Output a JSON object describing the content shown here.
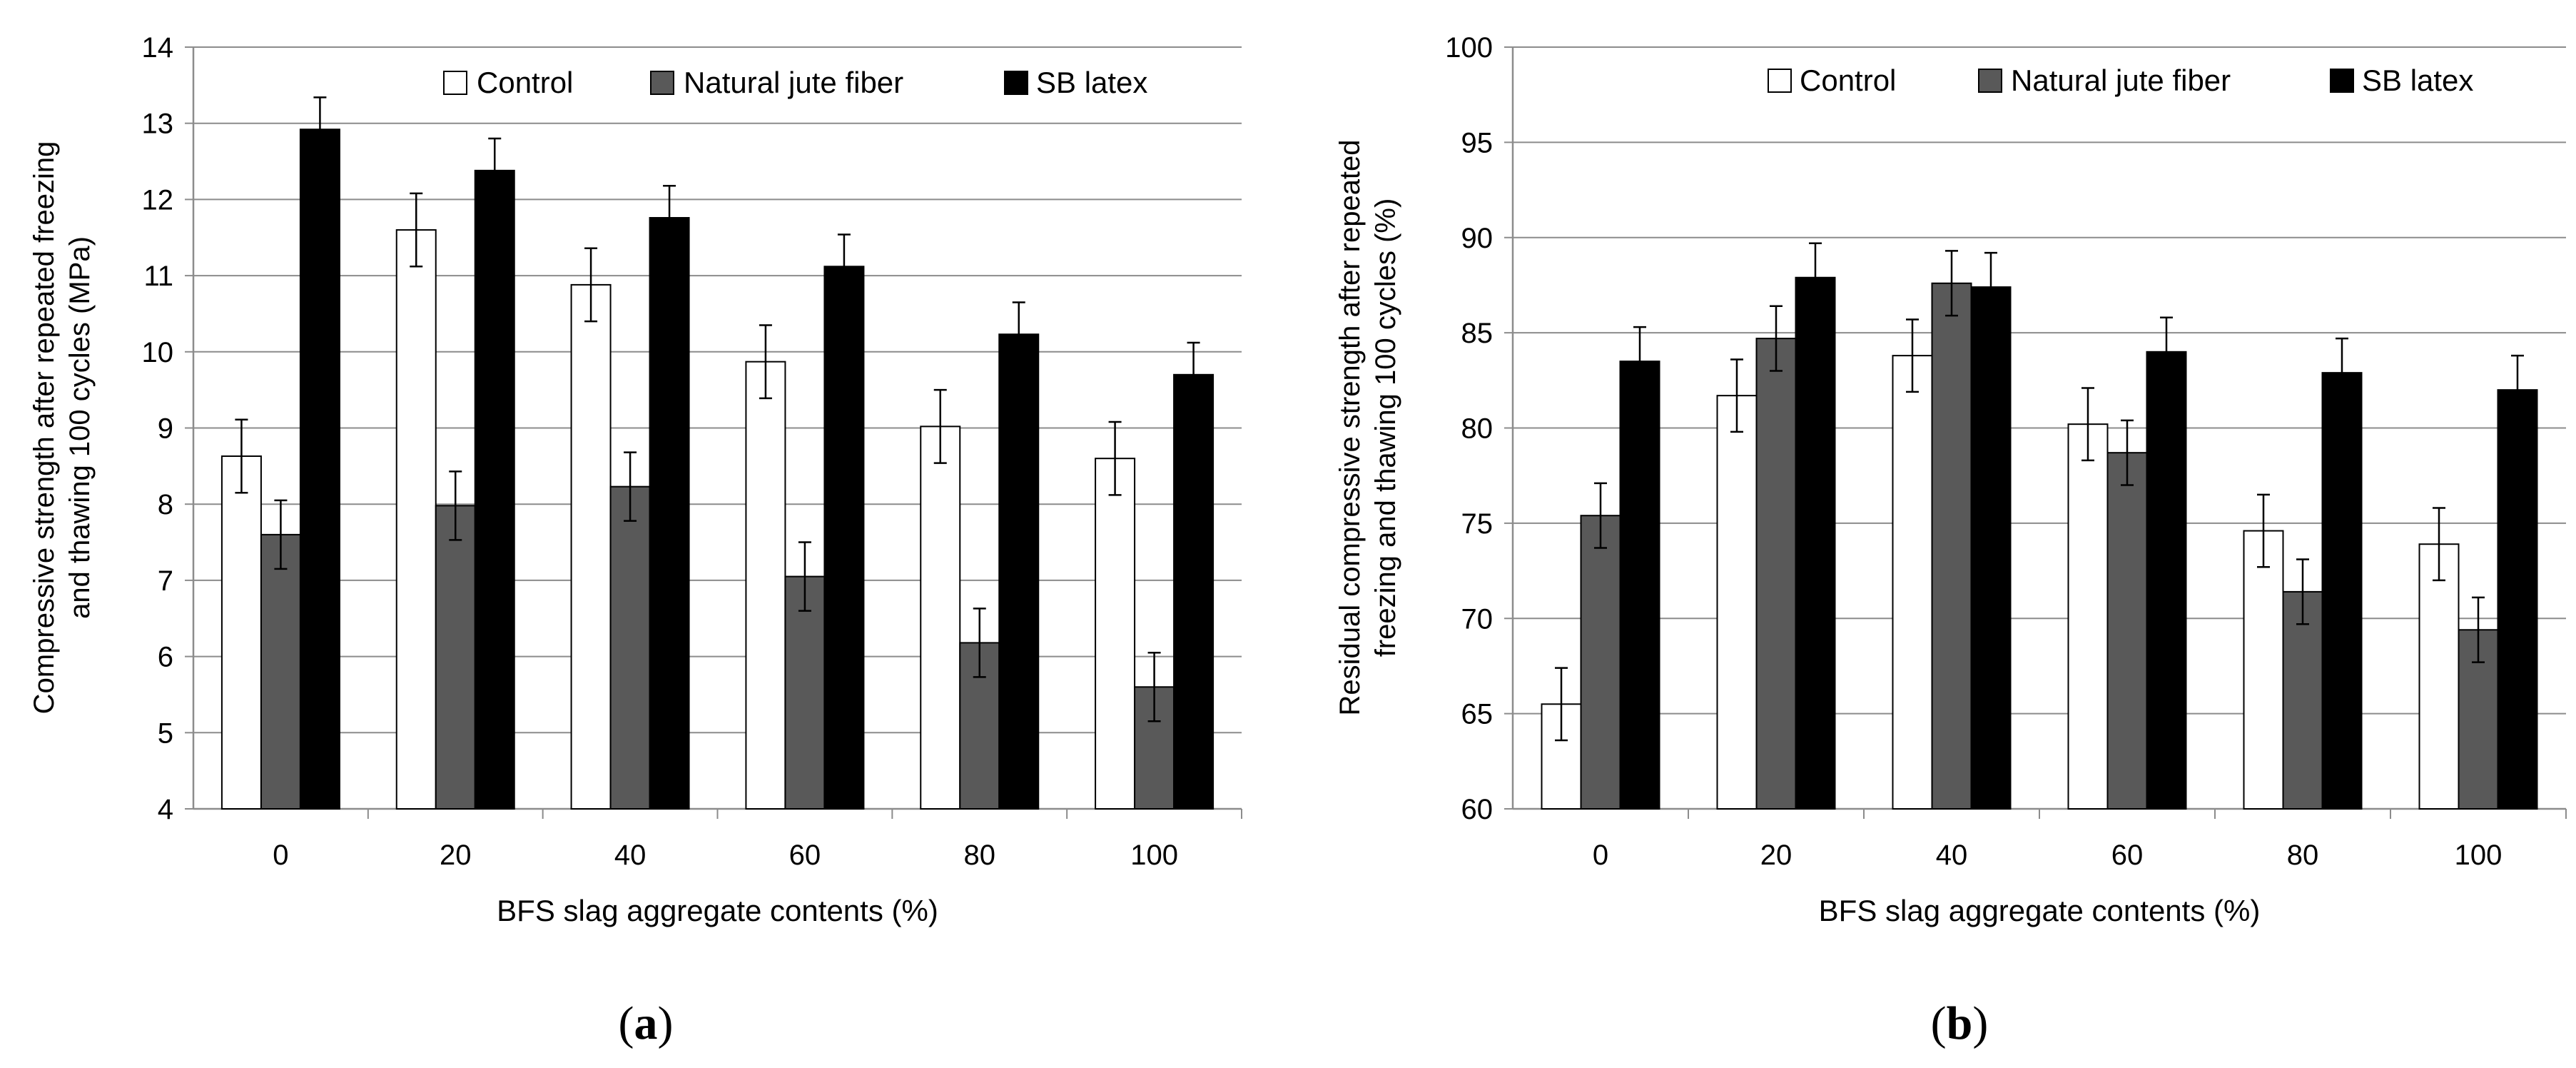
{
  "chart_data": [
    {
      "panel": "(a)",
      "panel_letter": "a",
      "type": "bar",
      "title": "",
      "xlabel": "BFS slag aggregate contents (%)",
      "ylabel_lines": [
        "Compressive strength after repeated freezing",
        "and thawing 100 cycles (MPa)"
      ],
      "categories": [
        "0",
        "20",
        "40",
        "60",
        "80",
        "100"
      ],
      "ylim": [
        4,
        14
      ],
      "yticks": [
        4,
        5,
        6,
        7,
        8,
        9,
        10,
        11,
        12,
        13,
        14
      ],
      "grid": true,
      "legend_position": "top",
      "series": [
        {
          "name": "Control",
          "color": "#ffffff",
          "values": [
            8.63,
            11.6,
            10.88,
            9.87,
            9.02,
            8.6
          ],
          "errors": [
            0.48,
            0.48,
            0.48,
            0.48,
            0.48,
            0.48
          ]
        },
        {
          "name": "Natural jute fiber",
          "color": "#595959",
          "values": [
            7.6,
            7.98,
            8.23,
            7.05,
            6.18,
            5.6
          ],
          "errors": [
            0.45,
            0.45,
            0.45,
            0.45,
            0.45,
            0.45
          ]
        },
        {
          "name": "SB latex",
          "color": "#000000",
          "values": [
            12.92,
            12.38,
            11.76,
            11.12,
            10.23,
            9.7
          ],
          "errors": [
            0.42,
            0.42,
            0.42,
            0.42,
            0.42,
            0.42
          ]
        }
      ]
    },
    {
      "panel": "(b)",
      "panel_letter": "b",
      "type": "bar",
      "title": "",
      "xlabel": "BFS slag aggregate contents (%)",
      "ylabel_lines": [
        "Residual compressive strength after repeated",
        "freezing and thawing 100 cycles (%)"
      ],
      "categories": [
        "0",
        "20",
        "40",
        "60",
        "80",
        "100"
      ],
      "ylim": [
        60,
        100
      ],
      "yticks": [
        60,
        65,
        70,
        75,
        80,
        85,
        90,
        95,
        100
      ],
      "grid": true,
      "legend_position": "top",
      "series": [
        {
          "name": "Control",
          "color": "#ffffff",
          "values": [
            65.5,
            81.7,
            83.8,
            80.2,
            74.6,
            73.9
          ],
          "errors": [
            1.9,
            1.9,
            1.9,
            1.9,
            1.9,
            1.9
          ]
        },
        {
          "name": "Natural jute fiber",
          "color": "#595959",
          "values": [
            75.4,
            84.7,
            87.6,
            78.7,
            71.4,
            69.4
          ],
          "errors": [
            1.7,
            1.7,
            1.7,
            1.7,
            1.7,
            1.7
          ]
        },
        {
          "name": "SB latex",
          "color": "#000000",
          "values": [
            83.5,
            87.9,
            87.4,
            84.0,
            82.9,
            82.0
          ],
          "errors": [
            1.8,
            1.8,
            1.8,
            1.8,
            1.8,
            1.8
          ]
        }
      ]
    }
  ]
}
